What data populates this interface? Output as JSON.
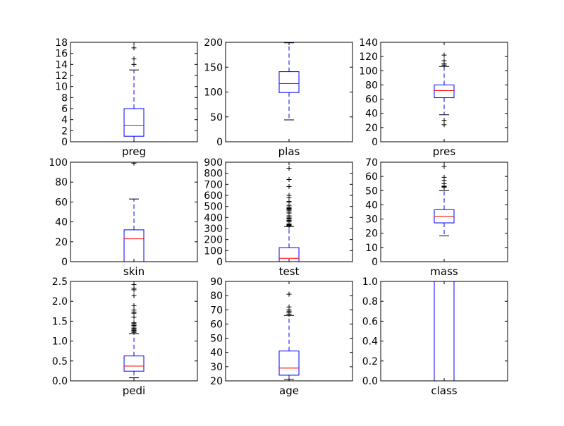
{
  "chart_data": [
    {
      "type": "box",
      "xlabel": "preg",
      "ylim": [
        0,
        18
      ],
      "yticks": [
        0,
        2,
        4,
        6,
        8,
        10,
        12,
        14,
        16,
        18
      ],
      "tick_labels": [
        "0",
        "2",
        "4",
        "6",
        "8",
        "10",
        "12",
        "14",
        "16",
        "18"
      ],
      "whisker_low": 0,
      "q1": 1,
      "median": 3,
      "q3": 6,
      "whisker_high": 13,
      "outliers": [
        14,
        15,
        17
      ]
    },
    {
      "type": "box",
      "xlabel": "plas",
      "ylim": [
        0,
        200
      ],
      "yticks": [
        0,
        50,
        100,
        150,
        200
      ],
      "tick_labels": [
        "0",
        "50",
        "100",
        "150",
        "200"
      ],
      "whisker_low": 44,
      "q1": 99,
      "median": 117,
      "q3": 141,
      "whisker_high": 199,
      "outliers": [
        0,
        0,
        0,
        0,
        0
      ]
    },
    {
      "type": "box",
      "xlabel": "pres",
      "ylim": [
        0,
        140
      ],
      "yticks": [
        0,
        20,
        40,
        60,
        80,
        100,
        120,
        140
      ],
      "tick_labels": [
        "0",
        "20",
        "40",
        "60",
        "80",
        "100",
        "120",
        "140"
      ],
      "whisker_low": 38,
      "q1": 62,
      "median": 72,
      "q3": 80,
      "whisker_high": 106,
      "outliers": [
        0,
        0,
        24,
        30,
        108,
        108,
        110,
        114,
        122
      ]
    },
    {
      "type": "box",
      "xlabel": "skin",
      "ylim": [
        0,
        100
      ],
      "yticks": [
        0,
        20,
        40,
        60,
        80,
        100
      ],
      "tick_labels": [
        "0",
        "20",
        "40",
        "60",
        "80",
        "100"
      ],
      "whisker_low": 0,
      "q1": 0,
      "median": 23,
      "q3": 32,
      "whisker_high": 63,
      "outliers": [
        99
      ]
    },
    {
      "type": "box",
      "xlabel": "test",
      "ylim": [
        0,
        900
      ],
      "yticks": [
        0,
        100,
        200,
        300,
        400,
        500,
        600,
        700,
        800,
        900
      ],
      "tick_labels": [
        "0",
        "100",
        "200",
        "300",
        "400",
        "500",
        "600",
        "700",
        "800",
        "900"
      ],
      "whisker_low": 0,
      "q1": 0,
      "median": 30,
      "q3": 127,
      "whisker_high": 318,
      "outliers": [
        321,
        325,
        326,
        330,
        335,
        342,
        360,
        370,
        375,
        387,
        392,
        402,
        415,
        440,
        450,
        465,
        474,
        478,
        480,
        485,
        495,
        510,
        540,
        543,
        545,
        579,
        600,
        680,
        744,
        846
      ]
    },
    {
      "type": "box",
      "xlabel": "mass",
      "ylim": [
        0,
        70
      ],
      "yticks": [
        0,
        10,
        20,
        30,
        40,
        50,
        60,
        70
      ],
      "tick_labels": [
        "0",
        "10",
        "20",
        "30",
        "40",
        "50",
        "60",
        "70"
      ],
      "whisker_low": 18.2,
      "q1": 27.3,
      "median": 32,
      "q3": 36.6,
      "whisker_high": 50,
      "outliers": [
        0,
        0,
        0,
        0,
        0,
        52.3,
        52.9,
        53.2,
        55,
        57.3,
        59.4,
        67.1
      ]
    },
    {
      "type": "box",
      "xlabel": "pedi",
      "ylim": [
        0.0,
        2.5
      ],
      "yticks": [
        0.0,
        0.5,
        1.0,
        1.5,
        2.0,
        2.5
      ],
      "tick_labels": [
        "0.0",
        "0.5",
        "1.0",
        "1.5",
        "2.0",
        "2.5"
      ],
      "whisker_low": 0.078,
      "q1": 0.244,
      "median": 0.372,
      "q3": 0.626,
      "whisker_high": 1.19,
      "outliers": [
        1.22,
        1.25,
        1.27,
        1.29,
        1.32,
        1.35,
        1.39,
        1.4,
        1.44,
        1.46,
        1.6,
        1.7,
        1.73,
        1.78,
        1.89,
        2.14,
        2.29,
        2.33,
        2.42
      ]
    },
    {
      "type": "box",
      "xlabel": "age",
      "ylim": [
        20,
        90
      ],
      "yticks": [
        20,
        30,
        40,
        50,
        60,
        70,
        80,
        90
      ],
      "tick_labels": [
        "20",
        "30",
        "40",
        "50",
        "60",
        "70",
        "80",
        "90"
      ],
      "whisker_low": 21,
      "q1": 24,
      "median": 29,
      "q3": 41,
      "whisker_high": 66,
      "outliers": [
        67,
        67,
        68,
        69,
        70,
        72,
        81
      ]
    },
    {
      "type": "box",
      "xlabel": "class",
      "ylim": [
        0.0,
        1.0
      ],
      "yticks": [
        0.0,
        0.2,
        0.4,
        0.6,
        0.8,
        1.0
      ],
      "tick_labels": [
        "0.0",
        "0.2",
        "0.4",
        "0.6",
        "0.8",
        "1.0"
      ],
      "whisker_low": 0,
      "q1": 0,
      "median": 0,
      "q3": 1,
      "whisker_high": 1,
      "outliers": []
    }
  ]
}
